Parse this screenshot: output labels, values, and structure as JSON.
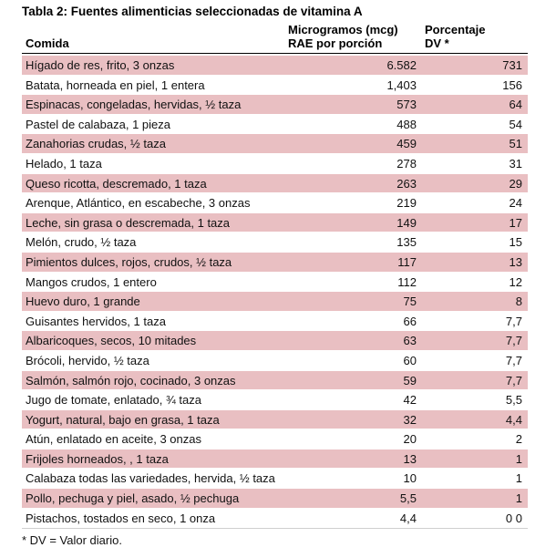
{
  "table": {
    "title": "Tabla 2: Fuentes  alimenticias seleccionadas  de vitamina A",
    "headers": {
      "food": "Comida",
      "mcg_line1": "Microgramos (mcg)",
      "mcg_line2": "RAE  por porción",
      "dv_line1": "Porcentaje",
      "dv_line2": "DV *"
    },
    "rows": [
      {
        "food": "Hígado de res,  frito, 3 onzas",
        "mcg": "6.582",
        "dv": "731",
        "shaded": true
      },
      {
        "food": "Batata, horneada en piel, 1 entera",
        "mcg": "1,403",
        "dv": "156",
        "shaded": false
      },
      {
        "food": "Espinacas, congeladas, hervidas, ½ taza",
        "mcg": "573",
        "dv": "64",
        "shaded": true
      },
      {
        "food": "Pastel de calabaza,  1 pieza",
        "mcg": "488",
        "dv": "54",
        "shaded": false
      },
      {
        "food": "Zanahorias crudas, ½ taza",
        "mcg": "459",
        "dv": "51",
        "shaded": true
      },
      {
        "food": "Helado, 1 taza",
        "mcg": "278",
        "dv": "31",
        "shaded": false
      },
      {
        "food": "Queso ricotta, descremado, 1 taza",
        "mcg": "263",
        "dv": "29",
        "shaded": true
      },
      {
        "food": "Arenque,  Atlántico,  en escabeche,  3 onzas",
        "mcg": "219",
        "dv": "24",
        "shaded": false
      },
      {
        "food": "Leche,  sin grasa o descremada, 1 taza",
        "mcg": "149",
        "dv": "17",
        "shaded": true
      },
      {
        "food": "Melón, crudo, ½ taza",
        "mcg": "135",
        "dv": "15",
        "shaded": false
      },
      {
        "food": "Pimientos dulces, rojos, crudos, ½ taza",
        "mcg": "117",
        "dv": "13",
        "shaded": true
      },
      {
        "food": "Mangos crudos, 1 entero",
        "mcg": "112",
        "dv": "12",
        "shaded": false
      },
      {
        "food": "Huevo duro, 1 grande",
        "mcg": "75",
        "dv": "8",
        "shaded": true
      },
      {
        "food": "Guisantes hervidos, 1 taza",
        "mcg": "66",
        "dv": "7,7",
        "shaded": false
      },
      {
        "food": "Albaricoques, secos, 10 mitades",
        "mcg": "63",
        "dv": "7,7",
        "shaded": true
      },
      {
        "food": "Brócoli, hervido, ½ taza",
        "mcg": "60",
        "dv": "7,7",
        "shaded": false
      },
      {
        "food": "Salmón, salmón rojo, cocinado, 3 onzas",
        "mcg": "59",
        "dv": "7,7",
        "shaded": true
      },
      {
        "food": "Jugo de tomate, enlatado, ¾ taza",
        "mcg": "42",
        "dv": "5,5",
        "shaded": false
      },
      {
        "food": "Yogurt, natural,  bajo en grasa, 1 taza",
        "mcg": "32",
        "dv": "4,4",
        "shaded": true
      },
      {
        "food": "Atún, enlatado en aceite, 3 onzas",
        "mcg": "20",
        "dv": "2",
        "shaded": false
      },
      {
        "food": "Frijoles horneados, , 1 taza",
        "mcg": "13",
        "dv": "1",
        "shaded": true
      },
      {
        "food": "Calabaza  todas las variedades, hervida, ½ taza",
        "mcg": "10",
        "dv": "1",
        "shaded": false
      },
      {
        "food": "Pollo, pechuga y piel, asado, ½ pechuga",
        "mcg": "5,5",
        "dv": "1",
        "shaded": true
      },
      {
        "food": "Pistachos, tostados en seco, 1 onza",
        "mcg": "4,4",
        "dv": "0 0",
        "shaded": false
      }
    ],
    "footnote": "* DV = Valor diario."
  },
  "colors": {
    "row_shade": "#e9bfc2"
  }
}
